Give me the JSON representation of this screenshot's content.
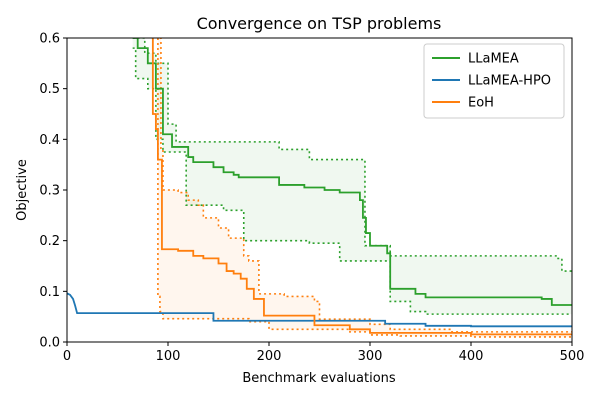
{
  "chart_data": {
    "type": "line",
    "title": "Convergence on TSP problems",
    "xlabel": "Benchmark evaluations",
    "ylabel": "Objective",
    "xlim": [
      0,
      500
    ],
    "ylim": [
      0,
      0.6
    ],
    "xticks": [
      "0",
      "100",
      "200",
      "300",
      "400",
      "500"
    ],
    "yticks": [
      "0.0",
      "0.1",
      "0.2",
      "0.3",
      "0.4",
      "0.5",
      "0.6"
    ],
    "legend_position": "top-right",
    "grid": false,
    "series": [
      {
        "name": "LLaMEA",
        "color": "#2ca02c",
        "mean": [
          [
            65,
            0.6
          ],
          [
            70,
            0.6
          ],
          [
            70,
            0.58
          ],
          [
            80,
            0.58
          ],
          [
            80,
            0.55
          ],
          [
            88,
            0.55
          ],
          [
            88,
            0.5
          ],
          [
            95,
            0.5
          ],
          [
            95,
            0.41
          ],
          [
            104,
            0.41
          ],
          [
            104,
            0.385
          ],
          [
            120,
            0.385
          ],
          [
            120,
            0.365
          ],
          [
            125,
            0.365
          ],
          [
            125,
            0.355
          ],
          [
            145,
            0.355
          ],
          [
            145,
            0.345
          ],
          [
            155,
            0.345
          ],
          [
            155,
            0.335
          ],
          [
            165,
            0.335
          ],
          [
            165,
            0.33
          ],
          [
            170,
            0.33
          ],
          [
            170,
            0.325
          ],
          [
            210,
            0.325
          ],
          [
            210,
            0.31
          ],
          [
            235,
            0.31
          ],
          [
            235,
            0.305
          ],
          [
            255,
            0.305
          ],
          [
            255,
            0.3
          ],
          [
            270,
            0.3
          ],
          [
            270,
            0.295
          ],
          [
            290,
            0.295
          ],
          [
            290,
            0.28
          ],
          [
            293,
            0.28
          ],
          [
            293,
            0.245
          ],
          [
            296,
            0.245
          ],
          [
            296,
            0.215
          ],
          [
            300,
            0.215
          ],
          [
            300,
            0.19
          ],
          [
            317,
            0.19
          ],
          [
            317,
            0.175
          ],
          [
            320,
            0.175
          ],
          [
            320,
            0.105
          ],
          [
            345,
            0.105
          ],
          [
            345,
            0.095
          ],
          [
            355,
            0.095
          ],
          [
            355,
            0.088
          ],
          [
            470,
            0.088
          ],
          [
            470,
            0.085
          ],
          [
            480,
            0.085
          ],
          [
            480,
            0.073
          ],
          [
            500,
            0.073
          ]
        ],
        "upper": [
          [
            65,
            0.6
          ],
          [
            77,
            0.6
          ],
          [
            77,
            0.57
          ],
          [
            88,
            0.57
          ],
          [
            88,
            0.55
          ],
          [
            100,
            0.55
          ],
          [
            100,
            0.43
          ],
          [
            108,
            0.43
          ],
          [
            108,
            0.395
          ],
          [
            210,
            0.395
          ],
          [
            210,
            0.38
          ],
          [
            240,
            0.38
          ],
          [
            240,
            0.36
          ],
          [
            295,
            0.36
          ],
          [
            295,
            0.19
          ],
          [
            320,
            0.19
          ],
          [
            320,
            0.17
          ],
          [
            485,
            0.17
          ],
          [
            485,
            0.165
          ],
          [
            490,
            0.165
          ],
          [
            490,
            0.14
          ],
          [
            500,
            0.14
          ]
        ],
        "lower": [
          [
            65,
            0.58
          ],
          [
            68,
            0.58
          ],
          [
            68,
            0.52
          ],
          [
            80,
            0.52
          ],
          [
            80,
            0.5
          ],
          [
            88,
            0.5
          ],
          [
            88,
            0.4
          ],
          [
            95,
            0.4
          ],
          [
            95,
            0.375
          ],
          [
            118,
            0.375
          ],
          [
            118,
            0.27
          ],
          [
            155,
            0.27
          ],
          [
            155,
            0.26
          ],
          [
            175,
            0.26
          ],
          [
            175,
            0.2
          ],
          [
            240,
            0.2
          ],
          [
            240,
            0.195
          ],
          [
            270,
            0.195
          ],
          [
            270,
            0.16
          ],
          [
            300,
            0.16
          ],
          [
            300,
            0.16
          ],
          [
            320,
            0.16
          ],
          [
            320,
            0.08
          ],
          [
            340,
            0.08
          ],
          [
            340,
            0.06
          ],
          [
            355,
            0.06
          ],
          [
            355,
            0.055
          ],
          [
            500,
            0.055
          ]
        ]
      },
      {
        "name": "LLaMEA-HPO",
        "color": "#1f77b4",
        "mean": [
          [
            0,
            0.096
          ],
          [
            3,
            0.093
          ],
          [
            6,
            0.085
          ],
          [
            8,
            0.072
          ],
          [
            10,
            0.057
          ],
          [
            145,
            0.057
          ],
          [
            145,
            0.042
          ],
          [
            315,
            0.042
          ],
          [
            315,
            0.036
          ],
          [
            355,
            0.036
          ],
          [
            355,
            0.032
          ],
          [
            400,
            0.032
          ],
          [
            400,
            0.031
          ],
          [
            500,
            0.031
          ]
        ],
        "upper": [],
        "lower": []
      },
      {
        "name": "EoH",
        "color": "#ff7f0e",
        "mean": [
          [
            84,
            0.6
          ],
          [
            85,
            0.6
          ],
          [
            85,
            0.45
          ],
          [
            88,
            0.45
          ],
          [
            88,
            0.42
          ],
          [
            90,
            0.42
          ],
          [
            90,
            0.36
          ],
          [
            94,
            0.36
          ],
          [
            94,
            0.183
          ],
          [
            110,
            0.183
          ],
          [
            110,
            0.18
          ],
          [
            125,
            0.18
          ],
          [
            125,
            0.17
          ],
          [
            135,
            0.17
          ],
          [
            135,
            0.165
          ],
          [
            150,
            0.165
          ],
          [
            150,
            0.155
          ],
          [
            158,
            0.155
          ],
          [
            158,
            0.14
          ],
          [
            165,
            0.14
          ],
          [
            165,
            0.135
          ],
          [
            172,
            0.135
          ],
          [
            172,
            0.125
          ],
          [
            178,
            0.125
          ],
          [
            178,
            0.105
          ],
          [
            185,
            0.105
          ],
          [
            185,
            0.085
          ],
          [
            195,
            0.085
          ],
          [
            195,
            0.052
          ],
          [
            245,
            0.052
          ],
          [
            245,
            0.033
          ],
          [
            280,
            0.033
          ],
          [
            280,
            0.025
          ],
          [
            300,
            0.025
          ],
          [
            300,
            0.018
          ],
          [
            400,
            0.018
          ],
          [
            400,
            0.015
          ],
          [
            500,
            0.015
          ]
        ],
        "upper": [
          [
            92,
            0.6
          ],
          [
            93,
            0.6
          ],
          [
            93,
            0.38
          ],
          [
            95,
            0.38
          ],
          [
            95,
            0.3
          ],
          [
            110,
            0.3
          ],
          [
            110,
            0.295
          ],
          [
            120,
            0.295
          ],
          [
            120,
            0.28
          ],
          [
            130,
            0.28
          ],
          [
            130,
            0.27
          ],
          [
            135,
            0.27
          ],
          [
            135,
            0.245
          ],
          [
            150,
            0.245
          ],
          [
            150,
            0.225
          ],
          [
            160,
            0.225
          ],
          [
            160,
            0.205
          ],
          [
            175,
            0.205
          ],
          [
            175,
            0.17
          ],
          [
            180,
            0.17
          ],
          [
            180,
            0.16
          ],
          [
            190,
            0.16
          ],
          [
            190,
            0.095
          ],
          [
            215,
            0.095
          ],
          [
            215,
            0.09
          ],
          [
            245,
            0.09
          ],
          [
            245,
            0.08
          ],
          [
            250,
            0.08
          ],
          [
            250,
            0.045
          ],
          [
            300,
            0.045
          ],
          [
            300,
            0.035
          ],
          [
            320,
            0.035
          ],
          [
            320,
            0.025
          ],
          [
            380,
            0.025
          ],
          [
            380,
            0.02
          ],
          [
            500,
            0.02
          ]
        ],
        "lower": [
          [
            90,
            0.6
          ],
          [
            90,
            0.09
          ],
          [
            92,
            0.09
          ],
          [
            92,
            0.06
          ],
          [
            95,
            0.06
          ],
          [
            95,
            0.046
          ],
          [
            180,
            0.046
          ],
          [
            180,
            0.04
          ],
          [
            200,
            0.04
          ],
          [
            200,
            0.025
          ],
          [
            280,
            0.025
          ],
          [
            280,
            0.02
          ],
          [
            300,
            0.02
          ],
          [
            300,
            0.014
          ],
          [
            330,
            0.014
          ],
          [
            330,
            0.012
          ],
          [
            400,
            0.012
          ],
          [
            400,
            0.01
          ],
          [
            500,
            0.01
          ]
        ]
      }
    ]
  }
}
